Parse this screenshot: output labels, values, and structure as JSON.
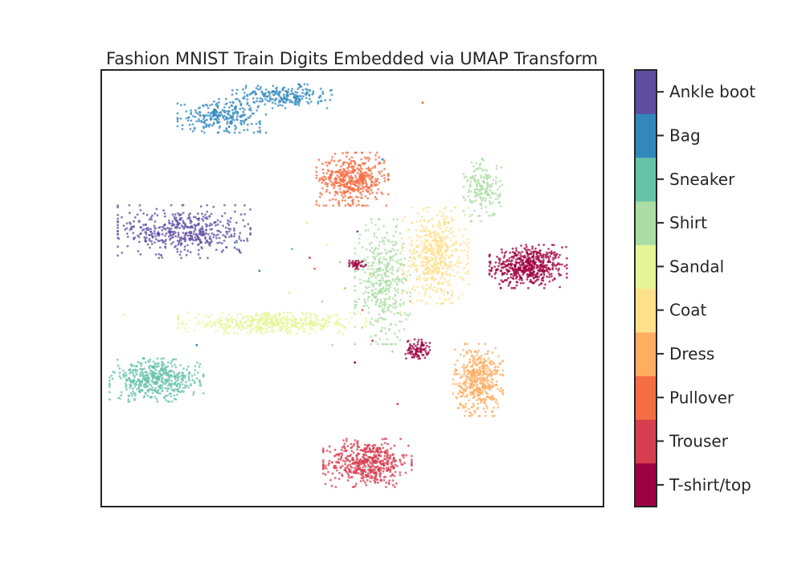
{
  "chart_data": {
    "type": "scatter",
    "title": "Fashion MNIST Train Digits Embedded via UMAP Transform",
    "xlabel": "",
    "ylabel": "",
    "xlim": [
      -10,
      10
    ],
    "ylim": [
      -10,
      10
    ],
    "xticks": [],
    "yticks": [],
    "grid": false,
    "legend": "colorbar-right",
    "colorbar": {
      "labels": [
        "T-shirt/top",
        "Trouser",
        "Pullover",
        "Dress",
        "Coat",
        "Sandal",
        "Shirt",
        "Sneaker",
        "Bag",
        "Ankle boot"
      ],
      "colors": [
        "#9e0142",
        "#d53e4f",
        "#f46d43",
        "#fdae61",
        "#fee08b",
        "#e6f598",
        "#abdda4",
        "#66c2a5",
        "#3288bd",
        "#5e4fa2"
      ]
    },
    "series": [
      {
        "name": "T-shirt/top",
        "class": 0,
        "color": "#9e0142",
        "clusters": [
          {
            "cx": 7.0,
            "cy": 1.0,
            "sx": 0.7,
            "sy": 0.45,
            "n": 520
          },
          {
            "cx": 2.6,
            "cy": -2.8,
            "sx": 0.22,
            "sy": 0.22,
            "n": 90
          },
          {
            "cx": 0.2,
            "cy": 1.1,
            "sx": 0.15,
            "sy": 0.1,
            "n": 40
          }
        ]
      },
      {
        "name": "Trouser",
        "class": 1,
        "color": "#d53e4f",
        "clusters": [
          {
            "cx": 0.6,
            "cy": -8.0,
            "sx": 0.8,
            "sy": 0.5,
            "n": 520
          }
        ]
      },
      {
        "name": "Pullover",
        "class": 2,
        "color": "#f46d43",
        "clusters": [
          {
            "cx": 0.0,
            "cy": 5.0,
            "sx": 0.65,
            "sy": 0.55,
            "n": 480
          }
        ]
      },
      {
        "name": "Dress",
        "class": 3,
        "color": "#fdae61",
        "clusters": [
          {
            "cx": 5.0,
            "cy": -4.2,
            "sx": 0.45,
            "sy": 0.75,
            "n": 460
          }
        ]
      },
      {
        "name": "Coat",
        "class": 4,
        "color": "#fee08b",
        "clusters": [
          {
            "cx": 3.3,
            "cy": 1.5,
            "sx": 0.6,
            "sy": 1.0,
            "n": 520
          }
        ]
      },
      {
        "name": "Sandal",
        "class": 5,
        "color": "#e6f598",
        "clusters": [
          {
            "cx": -3.2,
            "cy": -1.6,
            "sx": 1.7,
            "sy": 0.22,
            "n": 480
          }
        ]
      },
      {
        "name": "Shirt",
        "class": 6,
        "color": "#abdda4",
        "clusters": [
          {
            "cx": 1.2,
            "cy": 0.3,
            "sx": 0.5,
            "sy": 1.3,
            "n": 420
          },
          {
            "cx": 5.2,
            "cy": 4.5,
            "sx": 0.35,
            "sy": 0.65,
            "n": 180
          }
        ]
      },
      {
        "name": "Sneaker",
        "class": 7,
        "color": "#66c2a5",
        "clusters": [
          {
            "cx": -7.8,
            "cy": -4.2,
            "sx": 0.85,
            "sy": 0.45,
            "n": 480
          }
        ]
      },
      {
        "name": "Bag",
        "class": 8,
        "color": "#3288bd",
        "clusters": [
          {
            "cx": -5.2,
            "cy": 7.9,
            "sx": 0.8,
            "sy": 0.35,
            "n": 260
          },
          {
            "cx": -2.8,
            "cy": 8.8,
            "sx": 0.9,
            "sy": 0.25,
            "n": 220
          }
        ]
      },
      {
        "name": "Ankle boot",
        "class": 9,
        "color": "#5e4fa2",
        "clusters": [
          {
            "cx": -6.7,
            "cy": 2.6,
            "sx": 1.2,
            "sy": 0.55,
            "n": 480
          }
        ]
      }
    ],
    "outliers": [
      {
        "x": -1.0,
        "y": 2.0,
        "class": 5
      },
      {
        "x": -0.5,
        "y": 1.2,
        "class": 6
      },
      {
        "x": -1.5,
        "y": 0.9,
        "class": 2
      },
      {
        "x": -2.4,
        "y": 1.8,
        "class": 7
      },
      {
        "x": -3.7,
        "y": 0.8,
        "class": 8
      },
      {
        "x": -4.6,
        "y": 2.1,
        "class": 7
      },
      {
        "x": -1.8,
        "y": 3.0,
        "class": 5
      },
      {
        "x": 0.2,
        "y": 2.6,
        "class": 9
      },
      {
        "x": -0.3,
        "y": -1.8,
        "class": 4
      },
      {
        "x": 0.8,
        "y": -2.4,
        "class": 1
      },
      {
        "x": 1.6,
        "y": -2.9,
        "class": 6
      },
      {
        "x": 0.1,
        "y": -3.4,
        "class": 0
      },
      {
        "x": 2.8,
        "y": 8.5,
        "class": 2
      },
      {
        "x": -6.2,
        "y": -2.6,
        "class": 8
      },
      {
        "x": -9.1,
        "y": -1.2,
        "class": 5
      },
      {
        "x": -4.5,
        "y": 1.7,
        "class": 9
      },
      {
        "x": 6.0,
        "y": 0.3,
        "class": 0
      },
      {
        "x": 1.8,
        "y": -5.3,
        "class": 1
      },
      {
        "x": 0.0,
        "y": 4.0,
        "class": 2
      },
      {
        "x": 1.2,
        "y": 5.9,
        "class": 8
      },
      {
        "x": -0.3,
        "y": 0.0,
        "class": 3
      },
      {
        "x": 0.7,
        "y": 0.6,
        "class": 4
      },
      {
        "x": -1.2,
        "y": -0.6,
        "class": 6
      },
      {
        "x": 1.9,
        "y": -1.1,
        "class": 5
      },
      {
        "x": -2.5,
        "y": -0.2,
        "class": 4
      },
      {
        "x": 2.3,
        "y": -0.6,
        "class": 3
      },
      {
        "x": -0.8,
        "y": -2.6,
        "class": 6
      },
      {
        "x": 3.8,
        "y": -0.2,
        "class": 6
      },
      {
        "x": -1.7,
        "y": 1.4,
        "class": 1
      },
      {
        "x": 0.4,
        "y": -1.0,
        "class": 2
      }
    ]
  }
}
